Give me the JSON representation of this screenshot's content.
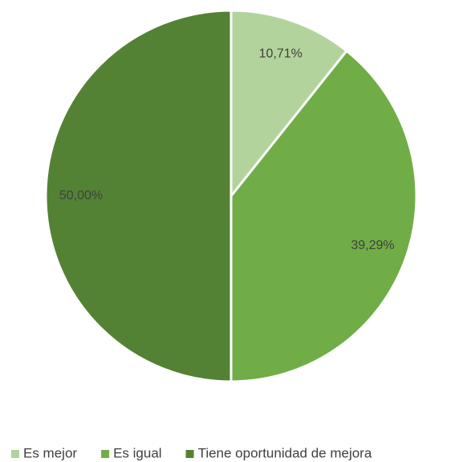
{
  "chart_data": {
    "type": "pie",
    "categories": [
      "Es mejor",
      "Es igual",
      "Tiene oportunidad de mejora"
    ],
    "values": [
      10.71,
      39.29,
      50.0
    ],
    "value_labels": [
      "10,71%",
      "39,29%",
      "50,00%"
    ],
    "colors": [
      "#b2d49c",
      "#70ad47",
      "#548235"
    ],
    "legend": "bottom"
  }
}
